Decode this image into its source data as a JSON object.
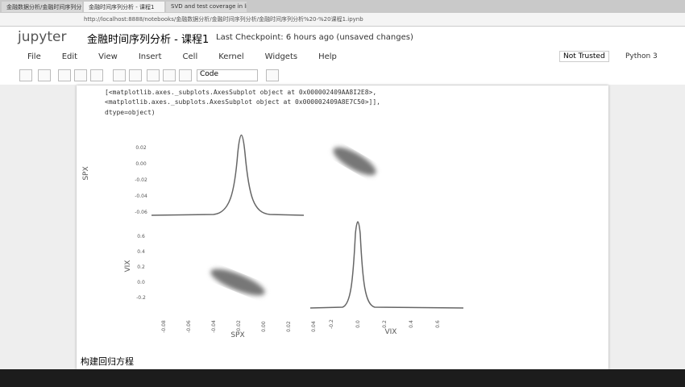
{
  "browser": {
    "tabs": [
      "金融数据分析/金融时间序列分",
      "金融时间序列分析 - 课程1",
      "SVD and test coverage in linear"
    ],
    "url": "http://localhost:8888/notebooks/金融数据分析/金融时间序列分析/金融时间序列分析%20-%20课程1.ipynb"
  },
  "header": {
    "logo": "jupyter",
    "title": "金融时间序列分析 - 课程1",
    "checkpoint": "Last Checkpoint: 6 hours ago (unsaved changes)",
    "trust": "Not Trusted",
    "kernel": "Python 3"
  },
  "menu": [
    "File",
    "Edit",
    "View",
    "Insert",
    "Cell",
    "Kernel",
    "Widgets",
    "Help"
  ],
  "toolbar": {
    "cell_type": "Code"
  },
  "output": [
    "[<matplotlib.axes._subplots.AxesSubplot object at 0x000002409AA8I2E8>,",
    " <matplotlib.axes._subplots.AxesSubplot object at 0x000002409A8E7C50>]],",
    "dtype=object)"
  ],
  "plot": {
    "row_labels": [
      "SPX",
      "VIX"
    ],
    "col_labels": [
      "SPX",
      "VIX"
    ],
    "spx_yticks": [
      "0.02",
      "0.00",
      "-0.02",
      "-0.04",
      "-0.06"
    ],
    "vix_yticks": [
      "0.6",
      "0.4",
      "0.2",
      "0.0",
      "-0.2"
    ],
    "spx_xticks": [
      "-0.08",
      "-0.06",
      "-0.04",
      "-0.02",
      "0.00",
      "0.02",
      "0.04"
    ],
    "vix_xticks": [
      "-0.2",
      "0.0",
      "0.2",
      "0.4",
      "0.6"
    ]
  },
  "markdown": {
    "heading": "构建回归方程"
  }
}
